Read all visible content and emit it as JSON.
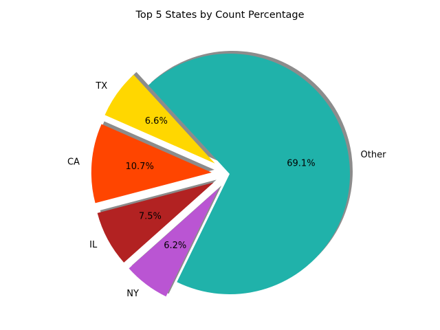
{
  "chart_data": {
    "type": "pie",
    "title": "Top 5 States by Count Percentage",
    "slices": [
      {
        "label": "Other",
        "value": 69.1,
        "pct_label": "69.1%",
        "color": "#20B2AA",
        "exploded": false
      },
      {
        "label": "TX",
        "value": 6.6,
        "pct_label": "6.6%",
        "color": "#FFD700",
        "exploded": true
      },
      {
        "label": "CA",
        "value": 10.7,
        "pct_label": "10.7%",
        "color": "#FF4500",
        "exploded": true
      },
      {
        "label": "IL",
        "value": 7.5,
        "pct_label": "7.5%",
        "color": "#B22222",
        "exploded": true
      },
      {
        "label": "NY",
        "value": 6.2,
        "pct_label": "6.2%",
        "color": "#BA55D3",
        "exploded": true
      }
    ],
    "start_angle_deg": -116,
    "shadow": true,
    "legend": "none"
  }
}
